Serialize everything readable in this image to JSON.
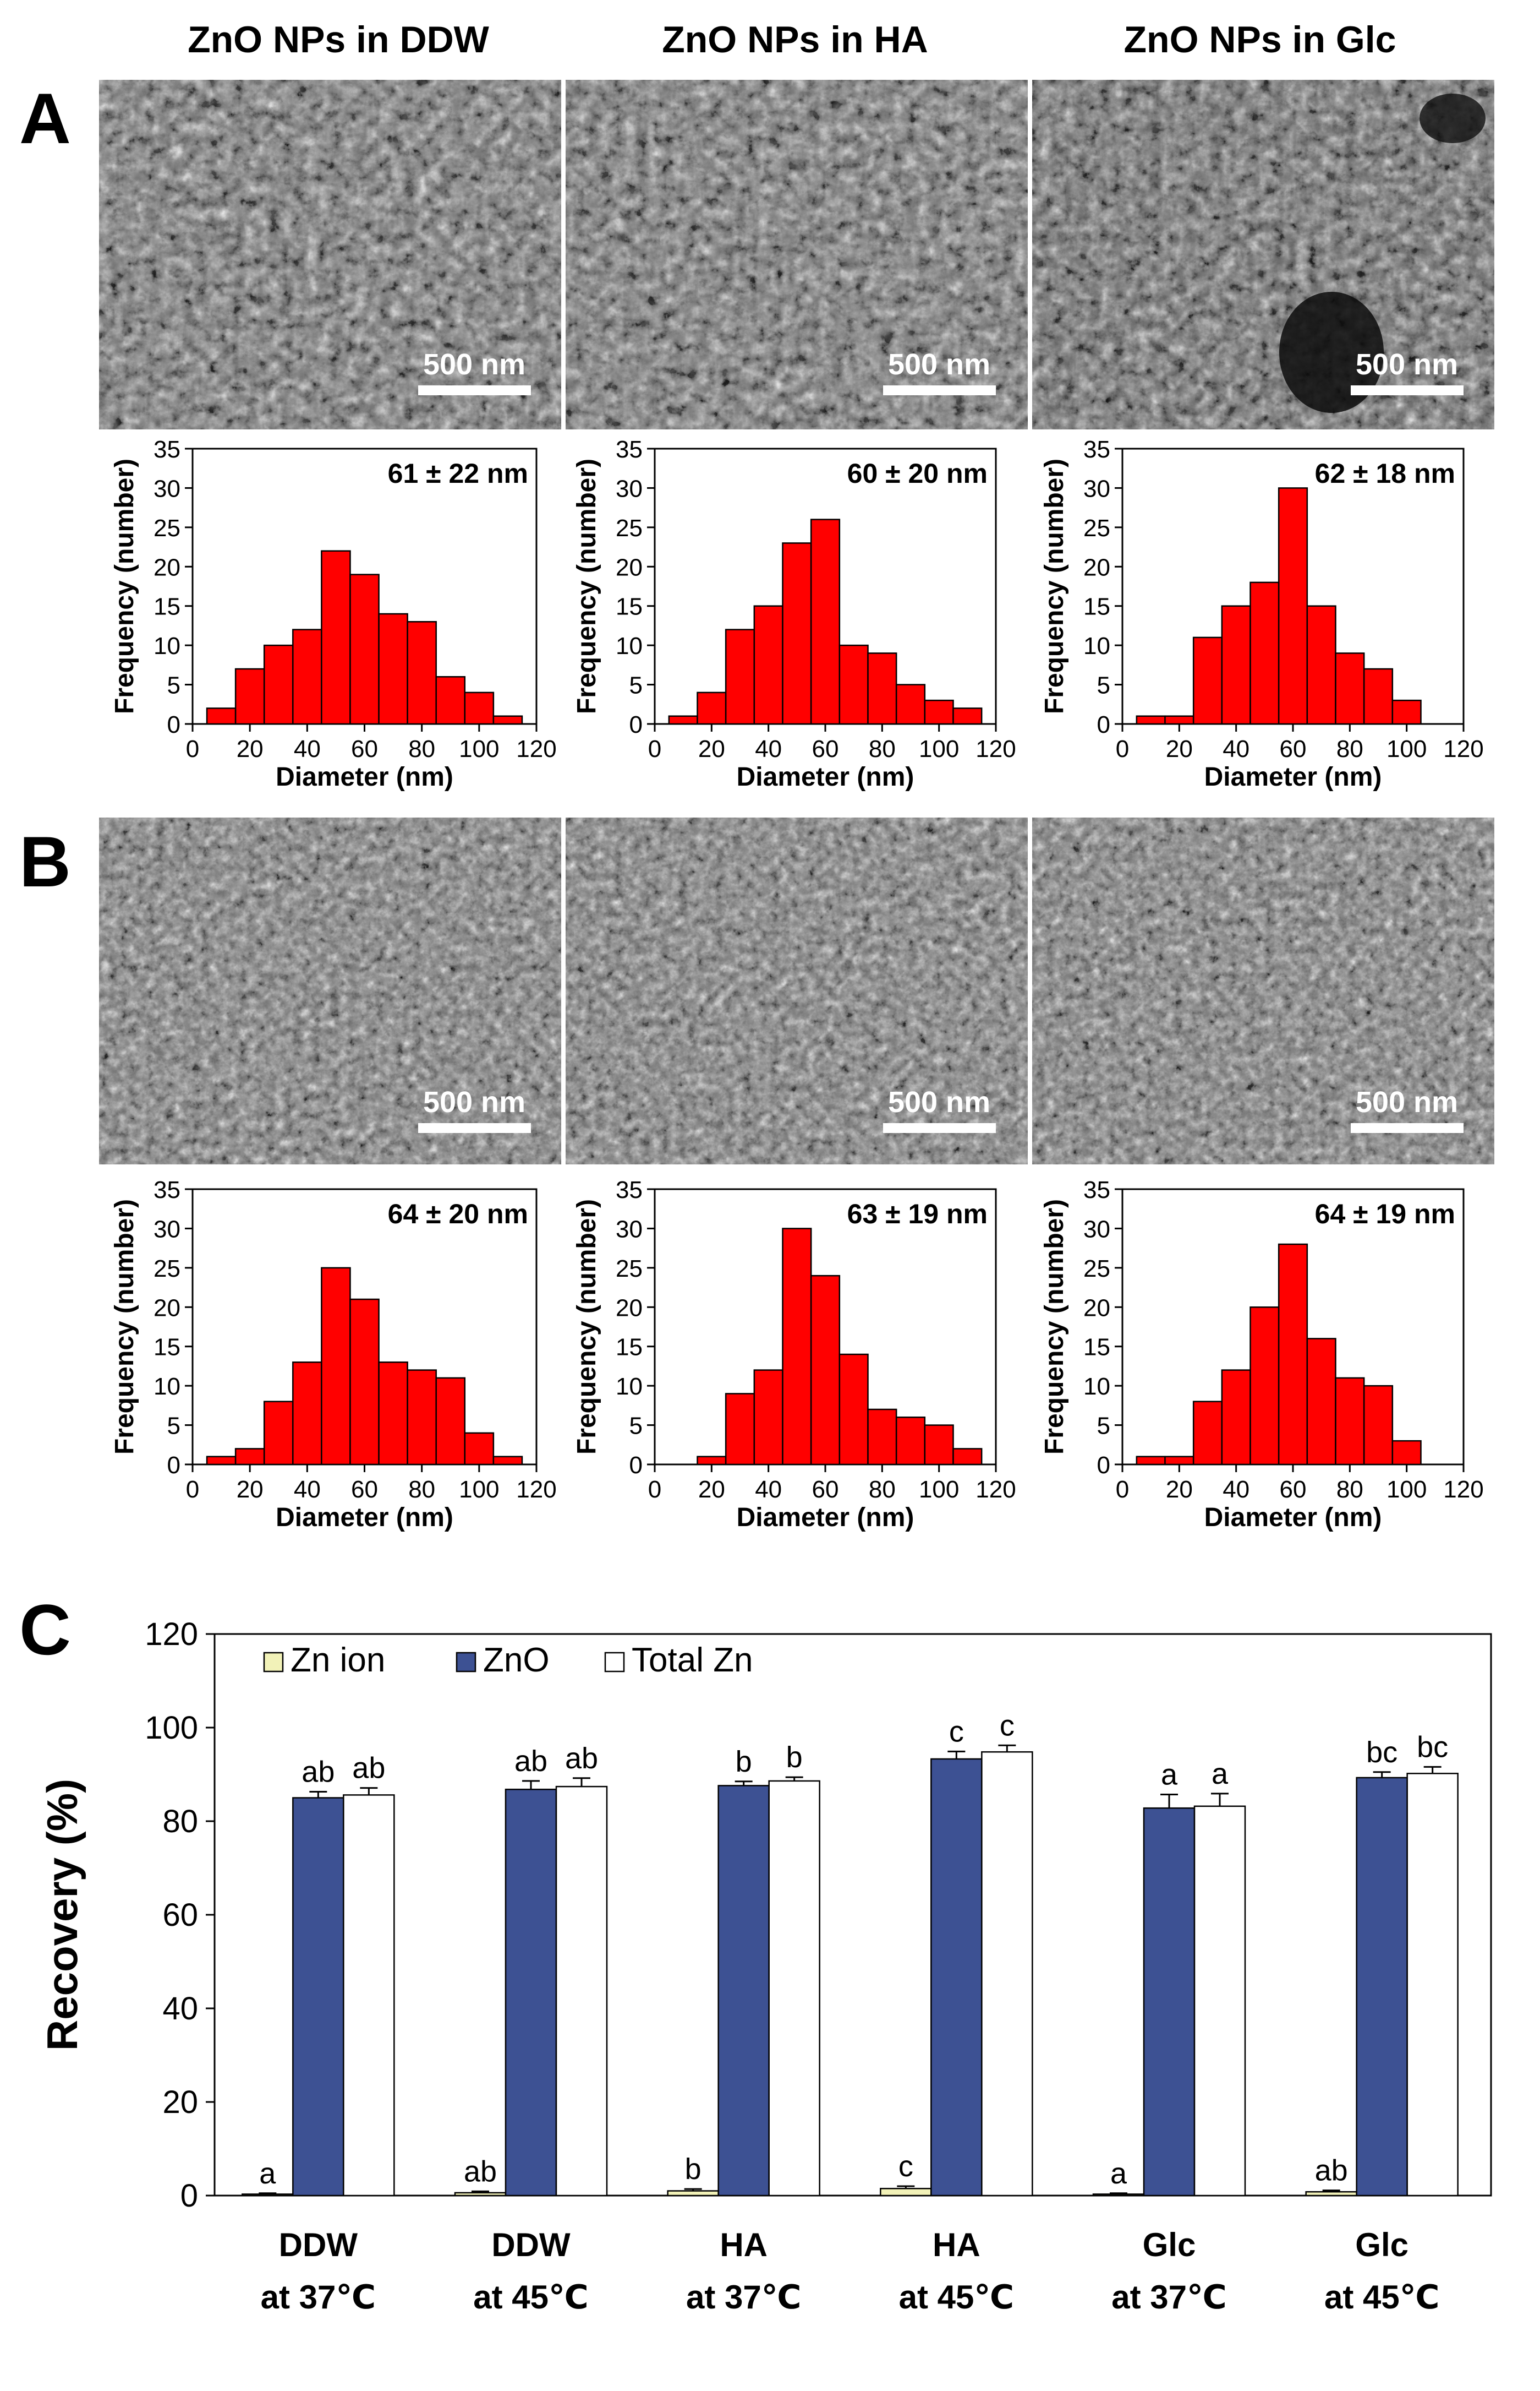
{
  "column_titles": [
    "ZnO NPs in DDW",
    "ZnO NPs in HA",
    "ZnO NPs in Glc"
  ],
  "panel_labels": [
    "A",
    "B",
    "C"
  ],
  "scale_bar_label": "500 nm",
  "colors": {
    "hist_bar": "#ff0000",
    "zn_ion": "#f2f2b8",
    "zno": "#3d5193",
    "total_zn": "#ffffff",
    "sem_base": "#8c8c8c"
  },
  "chart_data": [
    {
      "type": "bar",
      "panel": "A",
      "column": "ZnO NPs in DDW",
      "annotation": "61 ± 22 nm",
      "xlabel": "Diameter (nm)",
      "ylabel": "Frequency (number)",
      "xlim": [
        0,
        120
      ],
      "ylim": [
        0,
        35
      ],
      "bin_width": 10,
      "bin_starts": [
        5,
        15,
        25,
        35,
        45,
        55,
        65,
        75,
        85,
        95,
        105
      ],
      "values": [
        2,
        7,
        10,
        12,
        22,
        19,
        14,
        13,
        6,
        4,
        1
      ],
      "xticks": [
        0,
        20,
        40,
        60,
        80,
        100,
        120
      ],
      "yticks": [
        0,
        5,
        10,
        15,
        20,
        25,
        30,
        35
      ]
    },
    {
      "type": "bar",
      "panel": "A",
      "column": "ZnO NPs in HA",
      "annotation": "60 ± 20 nm",
      "xlabel": "Diameter (nm)",
      "ylabel": "Frequency (number)",
      "xlim": [
        0,
        120
      ],
      "ylim": [
        0,
        35
      ],
      "bin_width": 10,
      "bin_starts": [
        5,
        15,
        25,
        35,
        45,
        55,
        65,
        75,
        85,
        95,
        105
      ],
      "values": [
        1,
        4,
        12,
        15,
        23,
        26,
        10,
        9,
        5,
        3,
        2
      ],
      "xticks": [
        0,
        20,
        40,
        60,
        80,
        100,
        120
      ],
      "yticks": [
        0,
        5,
        10,
        15,
        20,
        25,
        30,
        35
      ]
    },
    {
      "type": "bar",
      "panel": "A",
      "column": "ZnO NPs in Glc",
      "annotation": "62 ± 18 nm",
      "xlabel": "Diameter (nm)",
      "ylabel": "Frequency (number)",
      "xlim": [
        0,
        120
      ],
      "ylim": [
        0,
        35
      ],
      "bin_width": 10,
      "bin_starts": [
        5,
        15,
        25,
        35,
        45,
        55,
        65,
        75,
        85,
        95
      ],
      "values": [
        1,
        1,
        11,
        15,
        18,
        30,
        15,
        9,
        7,
        3
      ],
      "xticks": [
        0,
        20,
        40,
        60,
        80,
        100,
        120
      ],
      "yticks": [
        0,
        5,
        10,
        15,
        20,
        25,
        30,
        35
      ]
    },
    {
      "type": "bar",
      "panel": "B",
      "column": "ZnO NPs in DDW",
      "annotation": "64 ± 20 nm",
      "xlabel": "Diameter (nm)",
      "ylabel": "Frequency (number)",
      "xlim": [
        0,
        120
      ],
      "ylim": [
        0,
        35
      ],
      "bin_width": 10,
      "bin_starts": [
        5,
        15,
        25,
        35,
        45,
        55,
        65,
        75,
        85,
        95,
        105
      ],
      "values": [
        1,
        2,
        8,
        13,
        25,
        21,
        13,
        12,
        11,
        4,
        1
      ],
      "xticks": [
        0,
        20,
        40,
        60,
        80,
        100,
        120
      ],
      "yticks": [
        0,
        5,
        10,
        15,
        20,
        25,
        30,
        35
      ]
    },
    {
      "type": "bar",
      "panel": "B",
      "column": "ZnO NPs in HA",
      "annotation": "63 ± 19 nm",
      "xlabel": "Diameter (nm)",
      "ylabel": "Frequency (number)",
      "xlim": [
        0,
        120
      ],
      "ylim": [
        0,
        35
      ],
      "bin_width": 10,
      "bin_starts": [
        15,
        25,
        35,
        45,
        55,
        65,
        75,
        85,
        95,
        105
      ],
      "values": [
        1,
        9,
        12,
        30,
        24,
        14,
        7,
        6,
        5,
        2
      ],
      "xticks": [
        0,
        20,
        40,
        60,
        80,
        100,
        120
      ],
      "yticks": [
        0,
        5,
        10,
        15,
        20,
        25,
        30,
        35
      ]
    },
    {
      "type": "bar",
      "panel": "B",
      "column": "ZnO NPs in Glc",
      "annotation": "64 ± 19 nm",
      "xlabel": "Diameter (nm)",
      "ylabel": "Frequency (number)",
      "xlim": [
        0,
        120
      ],
      "ylim": [
        0,
        35
      ],
      "bin_width": 10,
      "bin_starts": [
        5,
        15,
        25,
        35,
        45,
        55,
        65,
        75,
        85,
        95
      ],
      "values": [
        1,
        1,
        8,
        12,
        20,
        28,
        16,
        11,
        10,
        3
      ],
      "xticks": [
        0,
        20,
        40,
        60,
        80,
        100,
        120
      ],
      "yticks": [
        0,
        5,
        10,
        15,
        20,
        25,
        30,
        35
      ]
    },
    {
      "type": "bar",
      "panel": "C",
      "ylabel": "Recovery (%)",
      "xlabel": "",
      "ylim": [
        0,
        120
      ],
      "yticks": [
        0,
        20,
        40,
        60,
        80,
        100,
        120
      ],
      "categories": [
        [
          "DDW",
          "at 37℃"
        ],
        [
          "DDW",
          "at 45℃"
        ],
        [
          "HA",
          "at 37℃"
        ],
        [
          "HA",
          "at 45℃"
        ],
        [
          "Glc",
          "at 37℃"
        ],
        [
          "Glc",
          "at 45℃"
        ]
      ],
      "legend_position": "top-left",
      "series": [
        {
          "name": "Zn ion",
          "values": [
            0.3,
            0.6,
            1.0,
            1.5,
            0.3,
            0.8
          ],
          "errors": [
            0.2,
            0.3,
            0.4,
            0.5,
            0.2,
            0.3
          ],
          "letters": [
            "a",
            "ab",
            "b",
            "c",
            "a",
            "ab"
          ]
        },
        {
          "name": "ZnO",
          "values": [
            85,
            86.8,
            87.6,
            93.3,
            82.8,
            89.3
          ],
          "errors": [
            1.3,
            1.8,
            0.9,
            1.6,
            2.9,
            1.2
          ],
          "letters": [
            "ab",
            "ab",
            "b",
            "c",
            "a",
            "bc"
          ]
        },
        {
          "name": "Total Zn",
          "values": [
            85.6,
            87.4,
            88.6,
            94.8,
            83.2,
            90.2
          ],
          "errors": [
            1.5,
            1.8,
            0.8,
            1.4,
            2.7,
            1.4
          ],
          "letters": [
            "ab",
            "ab",
            "b",
            "c",
            "a",
            "bc"
          ]
        }
      ]
    }
  ]
}
